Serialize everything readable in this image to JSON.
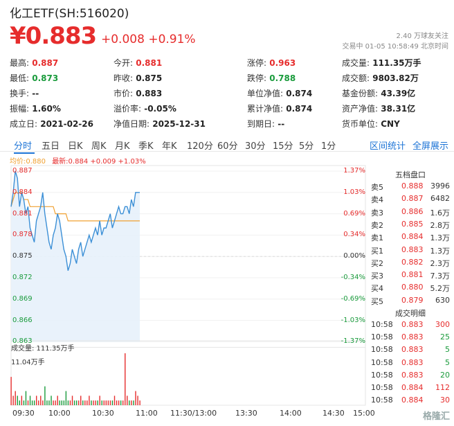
{
  "header": {
    "title": "化工ETF(SH:516020)",
    "price": "¥0.883",
    "change": "+0.008",
    "change_pct": "+0.91%",
    "followers": "2.40 万球友关注",
    "status": "交易中 01-05 10:58:49 北京时间"
  },
  "stats": [
    [
      {
        "label": "最高:",
        "value": "0.887",
        "color": "red"
      },
      {
        "label": "今开:",
        "value": "0.881",
        "color": "red"
      },
      {
        "label": "涨停:",
        "value": "0.963",
        "color": "red"
      },
      {
        "label": "成交量:",
        "value": "111.35万手",
        "color": "normal"
      }
    ],
    [
      {
        "label": "最低:",
        "value": "0.873",
        "color": "green"
      },
      {
        "label": "昨收:",
        "value": "0.875",
        "color": "normal"
      },
      {
        "label": "跌停:",
        "value": "0.788",
        "color": "green"
      },
      {
        "label": "成交额:",
        "value": "9803.82万",
        "color": "normal"
      }
    ],
    [
      {
        "label": "换手:",
        "value": "--",
        "color": "normal"
      },
      {
        "label": "市价:",
        "value": "0.883",
        "color": "normal"
      },
      {
        "label": "单位净值:",
        "value": "0.874",
        "color": "normal"
      },
      {
        "label": "基金份额:",
        "value": "43.39亿",
        "color": "normal"
      }
    ],
    [
      {
        "label": "振幅:",
        "value": "1.60%",
        "color": "normal"
      },
      {
        "label": "溢价率:",
        "value": "-0.05%",
        "color": "normal"
      },
      {
        "label": "累计净值:",
        "value": "0.874",
        "color": "normal"
      },
      {
        "label": "资产净值:",
        "value": "38.31亿",
        "color": "normal"
      }
    ],
    [
      {
        "label": "成立日:",
        "value": "2021-02-26",
        "color": "normal"
      },
      {
        "label": "净值日期:",
        "value": "2025-12-31",
        "color": "normal"
      },
      {
        "label": "到期日:",
        "value": "--",
        "color": "normal"
      },
      {
        "label": "货币单位:",
        "value": "CNY",
        "color": "normal"
      }
    ]
  ],
  "tabs": [
    "分时",
    "五日",
    "日K",
    "周K",
    "月K",
    "季K",
    "年K",
    "120分",
    "60分",
    "30分",
    "15分",
    "5分",
    "1分"
  ],
  "tabs_right": [
    "区间统计",
    "全屏展示"
  ],
  "legend": {
    "avg": "均价:0.880",
    "latest": "最新:0.884 +0.009 +1.03%"
  },
  "y_left": [
    "0.887",
    "0.884",
    "0.881",
    "0.878",
    "0.875",
    "0.872",
    "0.869",
    "0.866",
    "0.863"
  ],
  "y_right": [
    "1.37%",
    "1.03%",
    "0.69%",
    "0.34%",
    "0.00%",
    "-0.34%",
    "-0.69%",
    "-1.03%",
    "-1.37%"
  ],
  "orderbook": {
    "title": "五档盘口",
    "rows": [
      {
        "label": "卖5",
        "price": "0.888",
        "vol": "3996"
      },
      {
        "label": "卖4",
        "price": "0.887",
        "vol": "6482"
      },
      {
        "label": "卖3",
        "price": "0.886",
        "vol": "1.6万"
      },
      {
        "label": "卖2",
        "price": "0.885",
        "vol": "2.8万"
      },
      {
        "label": "卖1",
        "price": "0.884",
        "vol": "1.3万"
      },
      {
        "label": "买1",
        "price": "0.883",
        "vol": "1.3万"
      },
      {
        "label": "买2",
        "price": "0.882",
        "vol": "2.3万"
      },
      {
        "label": "买3",
        "price": "0.881",
        "vol": "7.3万"
      },
      {
        "label": "买4",
        "price": "0.880",
        "vol": "5.2万"
      },
      {
        "label": "买5",
        "price": "0.879",
        "vol": "630"
      }
    ]
  },
  "trades": {
    "title": "成交明细",
    "rows": [
      {
        "time": "10:58",
        "price": "0.883",
        "vol": "300",
        "color": "red"
      },
      {
        "time": "10:58",
        "price": "0.883",
        "vol": "25",
        "color": "green"
      },
      {
        "time": "10:58",
        "price": "0.883",
        "vol": "5",
        "color": "green"
      },
      {
        "time": "10:58",
        "price": "0.883",
        "vol": "5",
        "color": "green"
      },
      {
        "time": "10:58",
        "price": "0.883",
        "vol": "20",
        "color": "green"
      },
      {
        "time": "10:58",
        "price": "0.884",
        "vol": "112",
        "color": "red"
      },
      {
        "time": "10:58",
        "price": "0.884",
        "vol": "30",
        "color": "red"
      }
    ]
  },
  "volume": {
    "label": "成交量: 111.35万手",
    "max_label": "11.04万手"
  },
  "x_labels": [
    "09:30",
    "10:00",
    "10:30",
    "11:00",
    "11:30/13:00",
    "13:30",
    "14:00",
    "14:30",
    "15:00"
  ],
  "watermark": "格隆汇",
  "colors": {
    "up": "#e62c2c",
    "down": "#1a9b3c",
    "price_line": "#3b8fd6",
    "avg_line": "#f0a030",
    "accent": "#1d74d6"
  },
  "chart_data": {
    "type": "line",
    "ylim": [
      0.863,
      0.887
    ],
    "prev_close": 0.875,
    "series": [
      {
        "values": [
          0.882,
          0.884,
          0.887,
          0.886,
          0.882,
          0.884,
          0.883,
          0.881,
          0.882,
          0.879,
          0.878,
          0.877,
          0.88,
          0.881,
          0.882,
          0.884,
          0.881,
          0.879,
          0.877,
          0.876,
          0.878,
          0.879,
          0.881,
          0.88,
          0.878,
          0.876,
          0.875,
          0.873,
          0.874,
          0.876,
          0.875,
          0.874,
          0.876,
          0.877,
          0.875,
          0.876,
          0.877,
          0.878,
          0.877,
          0.878,
          0.879,
          0.878,
          0.88,
          0.878,
          0.879,
          0.879,
          0.88,
          0.881,
          0.879,
          0.88,
          0.881,
          0.882,
          0.881,
          0.881,
          0.882,
          0.882,
          0.881,
          0.883,
          0.882,
          0.884,
          0.884,
          0.884
        ]
      },
      {
        "values": [
          0.882,
          0.883,
          0.884,
          0.884,
          0.884,
          0.884,
          0.883,
          0.883,
          0.883,
          0.882,
          0.882,
          0.882,
          0.882,
          0.882,
          0.882,
          0.882,
          0.882,
          0.882,
          0.882,
          0.882,
          0.882,
          0.881,
          0.881,
          0.881,
          0.881,
          0.881,
          0.881,
          0.88,
          0.88,
          0.88,
          0.88,
          0.88,
          0.88,
          0.88,
          0.88,
          0.88,
          0.88,
          0.88,
          0.88,
          0.88,
          0.88,
          0.88,
          0.88,
          0.88,
          0.88,
          0.88,
          0.88,
          0.88,
          0.88,
          0.88,
          0.88,
          0.88,
          0.88,
          0.88,
          0.88,
          0.88,
          0.88,
          0.88,
          0.88,
          0.88,
          0.88,
          0.88
        ]
      }
    ],
    "volume_values": [
      6,
      2,
      3,
      2,
      1,
      2,
      1,
      3,
      1,
      2,
      1,
      1,
      2,
      1,
      2,
      1,
      4,
      1,
      1,
      2,
      1,
      1,
      2,
      1,
      1,
      1,
      3,
      1,
      1,
      2,
      1,
      1,
      1,
      2,
      1,
      1,
      1,
      2,
      1,
      1,
      1,
      1,
      2,
      1,
      1,
      1,
      1,
      1,
      1,
      2,
      1,
      1,
      1,
      1,
      11,
      2,
      1,
      1,
      1,
      3,
      2,
      1
    ]
  }
}
